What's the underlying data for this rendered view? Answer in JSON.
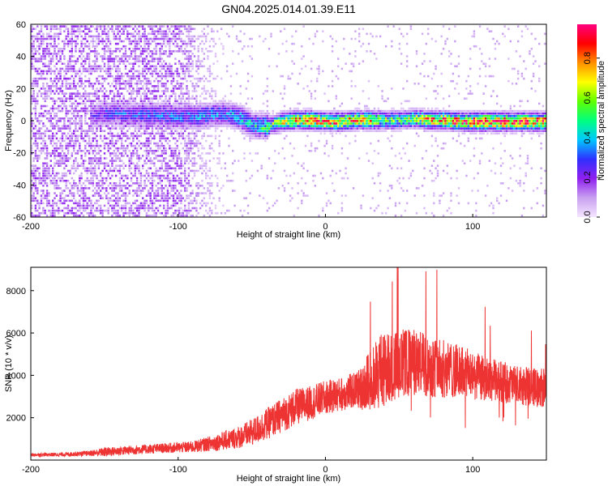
{
  "figure": {
    "title": "GN04.2025.014.01.39.E11"
  },
  "chart_data": [
    {
      "type": "heatmap",
      "xlabel": "Height of straight line (km)",
      "ylabel": "Frequency (Hz)",
      "xlim": [
        -200,
        150
      ],
      "ylim": [
        -60,
        60
      ],
      "x_ticks": [
        -200,
        -100,
        0,
        100
      ],
      "y_ticks": [
        -60,
        -40,
        -20,
        0,
        20,
        40,
        60
      ],
      "grid": false,
      "colorbar": {
        "label": "Normalized spectral amplitude",
        "range": [
          0,
          0.97
        ],
        "ticks": [
          0.0,
          0.2,
          0.4,
          0.6,
          0.8
        ],
        "tick_labels": [
          "0.0",
          "0.2",
          "0.4",
          "0.6",
          "0.8"
        ],
        "colormap": [
          "#f4e6ff",
          "#c8a0f0",
          "#9020f0",
          "#3030ff",
          "#00c8ff",
          "#00ff80",
          "#60ff00",
          "#ffff00",
          "#ff9000",
          "#ff0000",
          "#ff0080"
        ]
      },
      "ridge": {
        "x": [
          -158,
          -150,
          -140,
          -130,
          -120,
          -110,
          -100,
          -90,
          -80,
          -70,
          -60,
          -50,
          -40,
          -30,
          -20,
          -10,
          0,
          10,
          20,
          30,
          40,
          50,
          60,
          70,
          80,
          90,
          100,
          110,
          120,
          130,
          140,
          150
        ],
        "center": [
          4,
          5,
          5,
          4,
          4,
          4,
          3,
          3,
          4,
          5,
          3,
          -2,
          -3,
          0,
          1,
          1,
          0,
          0,
          1,
          1,
          1,
          1,
          2,
          1,
          1,
          0,
          0,
          0,
          0,
          0,
          0,
          0
        ],
        "amplitude": [
          0.22,
          0.28,
          0.3,
          0.3,
          0.33,
          0.33,
          0.34,
          0.36,
          0.38,
          0.35,
          0.42,
          0.45,
          0.55,
          0.7,
          0.8,
          0.85,
          0.85,
          0.85,
          0.8,
          0.75,
          0.62,
          0.55,
          0.65,
          0.8,
          0.85,
          0.9,
          0.92,
          0.95,
          0.95,
          0.95,
          0.95,
          0.9
        ]
      },
      "noise_region": {
        "x_range": [
          -200,
          -100
        ],
        "amplitude": 0.15
      }
    },
    {
      "type": "line",
      "xlabel": "Height of straight line (km)",
      "ylabel": "SNR (10 * v/v)",
      "xlim": [
        -200,
        150
      ],
      "ylim": [
        0,
        9100
      ],
      "x_ticks": [
        -200,
        -100,
        0,
        100
      ],
      "y_ticks": [
        2000,
        4000,
        6000,
        8000
      ],
      "grid": false,
      "series": [
        {
          "color": "#ee3333",
          "envelope": {
            "x": [
              -200,
              -180,
              -160,
              -150,
              -130,
              -110,
              -90,
              -80,
              -70,
              -60,
              -50,
              -40,
              -30,
              -20,
              -10,
              0,
              10,
              20,
              25,
              30,
              35,
              40,
              50,
              60,
              70,
              80,
              90,
              100,
              110,
              120,
              130,
              140,
              150
            ],
            "mean": [
              250,
              260,
              320,
              380,
              480,
              560,
              620,
              760,
              900,
              1050,
              1300,
              1700,
              2100,
              2500,
              2700,
              2950,
              3100,
              3300,
              3400,
              3800,
              4100,
              4300,
              4550,
              4600,
              4450,
              4300,
              4200,
              4000,
              3800,
              3700,
              3500,
              3450,
              3400
            ],
            "amplitude": [
              70,
              80,
              110,
              190,
              190,
              200,
              240,
              300,
              380,
              450,
              550,
              650,
              700,
              750,
              700,
              700,
              700,
              750,
              900,
              1300,
              1600,
              1500,
              1400,
              1400,
              1300,
              1200,
              1100,
              1000,
              900,
              850,
              800,
              800,
              800
            ]
          }
        }
      ]
    }
  ]
}
